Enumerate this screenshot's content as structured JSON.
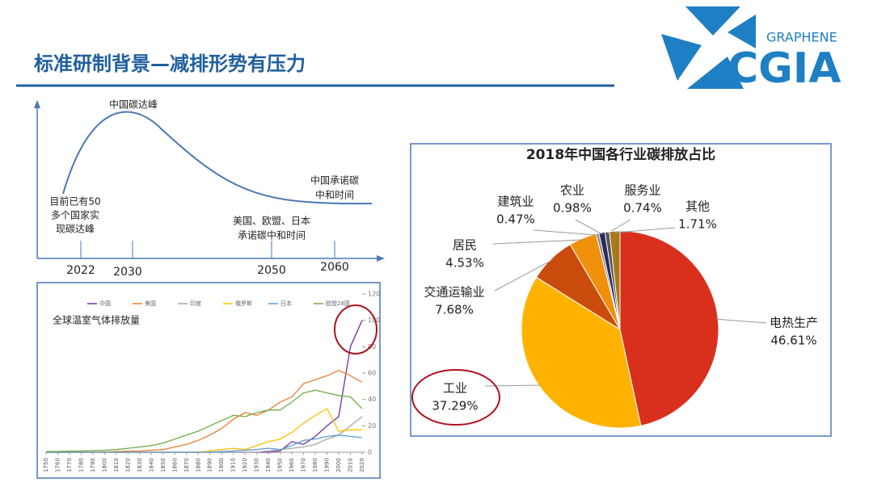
{
  "header": {
    "title": "标准研制背景—减排形势有压力"
  },
  "logo": {
    "top": "GRAPHENE",
    "main": "CGIA"
  },
  "timeline": {
    "peak": "中国碳达峰",
    "note_left": [
      "目前已有50",
      "多个国家实",
      "现碳达峰"
    ],
    "note_mid": [
      "美国、欧盟、日本",
      "承诺碳中和时间"
    ],
    "note_right": [
      "中国承诺碳",
      "中和时间"
    ],
    "years": [
      "2022",
      "2030",
      "2050",
      "2060"
    ]
  },
  "chart_data": [
    {
      "type": "line",
      "title": "全球温室气体排放量",
      "x": [
        1750,
        1760,
        1770,
        1780,
        1790,
        1800,
        1810,
        1820,
        1830,
        1840,
        1850,
        1860,
        1870,
        1880,
        1890,
        1900,
        1910,
        1920,
        1930,
        1940,
        1950,
        1960,
        1970,
        1980,
        1990,
        2000,
        2010,
        2020
      ],
      "series": [
        {
          "name": "中国",
          "color": "#7030a0",
          "values": [
            0,
            0,
            0,
            0,
            0,
            0,
            0,
            0,
            0,
            0,
            0,
            0,
            0,
            0,
            0,
            0,
            0,
            0,
            0,
            0,
            1,
            8,
            6,
            12,
            20,
            27,
            80,
            100
          ]
        },
        {
          "name": "美国",
          "color": "#ed7d31",
          "values": [
            0,
            0,
            0,
            0,
            0,
            0.3,
            0.5,
            0.8,
            1,
            1.5,
            2,
            4,
            6,
            9,
            13,
            18,
            25,
            30,
            28,
            32,
            38,
            42,
            52,
            55,
            58,
            62,
            58,
            53
          ]
        },
        {
          "name": "印度",
          "color": "#a5a5a5",
          "values": [
            0,
            0,
            0,
            0,
            0,
            0,
            0,
            0,
            0,
            0,
            0,
            0,
            0,
            0,
            0,
            0,
            0,
            0,
            0,
            1,
            2,
            3,
            4,
            6,
            10,
            13,
            20,
            27
          ]
        },
        {
          "name": "俄罗斯",
          "color": "#ffc000",
          "values": [
            0,
            0,
            0,
            0,
            0,
            0,
            0,
            0,
            0,
            0,
            0,
            0,
            0,
            0,
            1,
            2,
            3,
            2,
            5,
            8,
            10,
            15,
            22,
            28,
            33,
            16,
            17,
            17
          ]
        },
        {
          "name": "日本",
          "color": "#5b9bd5",
          "values": [
            0,
            0,
            0,
            0,
            0,
            0,
            0,
            0,
            0,
            0,
            0,
            0,
            0,
            0,
            0,
            0.5,
            1,
            1.5,
            2,
            3,
            2,
            5,
            9,
            10,
            12,
            13,
            12,
            11
          ]
        },
        {
          "name": "欧盟28国",
          "color": "#70ad47",
          "values": [
            0.5,
            0.6,
            0.8,
            1,
            1.2,
            1.5,
            2,
            3,
            4,
            5,
            7,
            10,
            13,
            16,
            20,
            24,
            28,
            27,
            30,
            32,
            32,
            38,
            45,
            47,
            45,
            43,
            42,
            33
          ]
        }
      ],
      "xlim": [
        1750,
        2020
      ],
      "xticks": [
        1750,
        1760,
        1770,
        1780,
        1790,
        1800,
        1810,
        1820,
        1830,
        1840,
        1850,
        1860,
        1870,
        1880,
        1890,
        1900,
        1910,
        1920,
        1930,
        1940,
        1950,
        1960,
        1970,
        1980,
        1990,
        2000,
        2010,
        2020
      ],
      "ylim": [
        0,
        120
      ],
      "yticks": [
        0,
        20,
        40,
        60,
        80,
        100,
        120
      ]
    },
    {
      "type": "pie",
      "title": "2018年中国各行业碳排放占比",
      "categories": [
        "电热生产",
        "工业",
        "交通运输业",
        "居民",
        "建筑业",
        "农业",
        "服务业",
        "其他"
      ],
      "values": [
        46.61,
        37.29,
        7.68,
        4.53,
        0.47,
        0.98,
        0.74,
        1.71
      ],
      "value_labels": [
        "46.61%",
        "37.29%",
        "7.68%",
        "4.53%",
        "0.47%",
        "0.98%",
        "0.74%",
        "1.71%"
      ],
      "colors": [
        "#d9301e",
        "#ffb300",
        "#c94c0c",
        "#f0900a",
        "#8a8a8a",
        "#2a2a5a",
        "#555555",
        "#a8781a"
      ]
    }
  ]
}
